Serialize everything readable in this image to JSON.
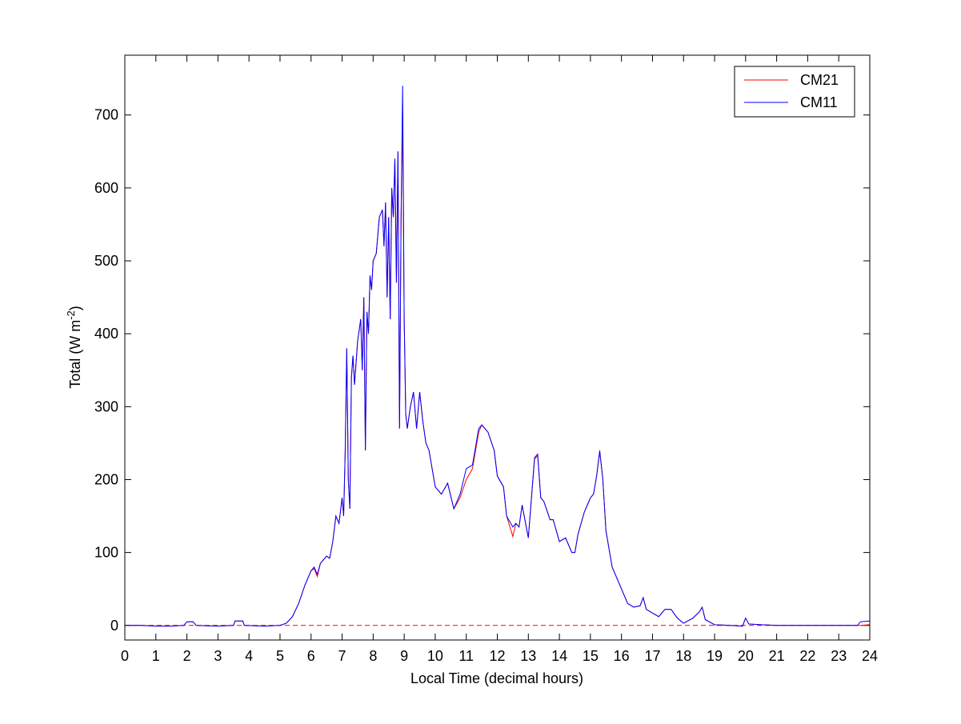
{
  "chart_data": {
    "type": "line",
    "xlabel": "Local Time (decimal hours)",
    "ylabel": {
      "text": "Total (W m",
      "superscript": "-2",
      "suffix": ")"
    },
    "xlim": [
      0,
      24
    ],
    "xticks": [
      0,
      1,
      2,
      3,
      4,
      5,
      6,
      7,
      8,
      9,
      10,
      11,
      12,
      13,
      14,
      15,
      16,
      17,
      18,
      19,
      20,
      21,
      22,
      23,
      24
    ],
    "ylim": [
      -20,
      782
    ],
    "yticks": [
      0,
      100,
      200,
      300,
      400,
      500,
      600,
      700
    ],
    "legend": "northeast",
    "x": [
      0,
      0.5,
      1,
      1.5,
      1.9,
      2.0,
      2.2,
      2.3,
      3,
      3.5,
      3.55,
      3.8,
      3.85,
      4.5,
      5,
      5.2,
      5.4,
      5.6,
      5.8,
      6.0,
      6.1,
      6.2,
      6.3,
      6.5,
      6.6,
      6.7,
      6.8,
      6.9,
      7.0,
      7.05,
      7.1,
      7.15,
      7.2,
      7.25,
      7.3,
      7.35,
      7.4,
      7.5,
      7.6,
      7.65,
      7.7,
      7.75,
      7.8,
      7.85,
      7.9,
      7.95,
      8.0,
      8.1,
      8.2,
      8.3,
      8.35,
      8.4,
      8.45,
      8.5,
      8.55,
      8.6,
      8.65,
      8.7,
      8.75,
      8.8,
      8.85,
      8.9,
      8.95,
      9.0,
      9.05,
      9.1,
      9.2,
      9.3,
      9.4,
      9.5,
      9.6,
      9.7,
      9.8,
      10.0,
      10.2,
      10.4,
      10.6,
      10.8,
      11.0,
      11.2,
      11.4,
      11.5,
      11.7,
      11.9,
      12.0,
      12.2,
      12.3,
      12.5,
      12.6,
      12.7,
      12.8,
      13.0,
      13.2,
      13.3,
      13.4,
      13.5,
      13.7,
      13.8,
      14.0,
      14.2,
      14.4,
      14.5,
      14.6,
      14.8,
      15.0,
      15.1,
      15.2,
      15.3,
      15.4,
      15.5,
      15.7,
      15.9,
      16.0,
      16.2,
      16.4,
      16.6,
      16.7,
      16.8,
      17.0,
      17.2,
      17.4,
      17.6,
      17.8,
      18.0,
      18.3,
      18.5,
      18.6,
      18.7,
      19.0,
      19.5,
      19.9,
      20.0,
      20.1,
      20.5,
      21,
      22,
      23,
      23.6,
      23.7,
      24
    ],
    "series": [
      {
        "name": "CM21",
        "color": "#ff0000",
        "values": [
          0,
          0,
          -1,
          -1,
          0,
          5,
          5,
          0,
          -1,
          0,
          6,
          6,
          0,
          -1,
          0,
          3,
          12,
          30,
          55,
          75,
          78,
          67,
          85,
          95,
          92,
          115,
          150,
          140,
          175,
          150,
          240,
          380,
          200,
          160,
          340,
          370,
          330,
          390,
          420,
          350,
          450,
          240,
          430,
          400,
          480,
          460,
          500,
          510,
          560,
          570,
          520,
          580,
          450,
          560,
          420,
          600,
          560,
          640,
          470,
          650,
          270,
          560,
          705,
          420,
          290,
          270,
          300,
          320,
          270,
          320,
          280,
          250,
          240,
          190,
          180,
          195,
          160,
          175,
          200,
          215,
          265,
          275,
          265,
          240,
          205,
          190,
          150,
          122,
          140,
          135,
          165,
          120,
          228,
          233,
          175,
          170,
          145,
          145,
          115,
          120,
          100,
          100,
          125,
          155,
          175,
          180,
          205,
          238,
          200,
          130,
          80,
          60,
          50,
          30,
          25,
          27,
          38,
          22,
          17,
          12,
          22,
          22,
          10,
          3,
          10,
          18,
          25,
          8,
          1,
          0,
          -1,
          10,
          2,
          1,
          0,
          0,
          0,
          0,
          0,
          1
        ]
      },
      {
        "name": "CM11",
        "color": "#0000ff",
        "values": [
          0,
          0,
          -1,
          -1,
          0,
          5,
          5,
          0,
          -1,
          0,
          6,
          6,
          0,
          -1,
          0,
          3,
          12,
          30,
          55,
          75,
          80,
          70,
          85,
          95,
          92,
          115,
          150,
          140,
          175,
          150,
          240,
          380,
          200,
          160,
          340,
          370,
          330,
          390,
          420,
          350,
          450,
          240,
          430,
          400,
          480,
          460,
          500,
          510,
          560,
          570,
          520,
          580,
          450,
          560,
          420,
          600,
          560,
          640,
          470,
          650,
          270,
          560,
          740,
          420,
          290,
          270,
          300,
          320,
          270,
          320,
          280,
          250,
          240,
          190,
          180,
          195,
          160,
          180,
          215,
          220,
          270,
          275,
          265,
          240,
          205,
          190,
          150,
          135,
          140,
          135,
          165,
          120,
          230,
          235,
          175,
          170,
          145,
          145,
          115,
          120,
          100,
          100,
          125,
          155,
          175,
          180,
          205,
          240,
          200,
          130,
          80,
          60,
          50,
          30,
          25,
          27,
          38,
          22,
          17,
          12,
          22,
          22,
          10,
          3,
          10,
          18,
          25,
          8,
          1,
          0,
          -1,
          10,
          2,
          1,
          0,
          0,
          0,
          0,
          5,
          6
        ]
      }
    ]
  }
}
